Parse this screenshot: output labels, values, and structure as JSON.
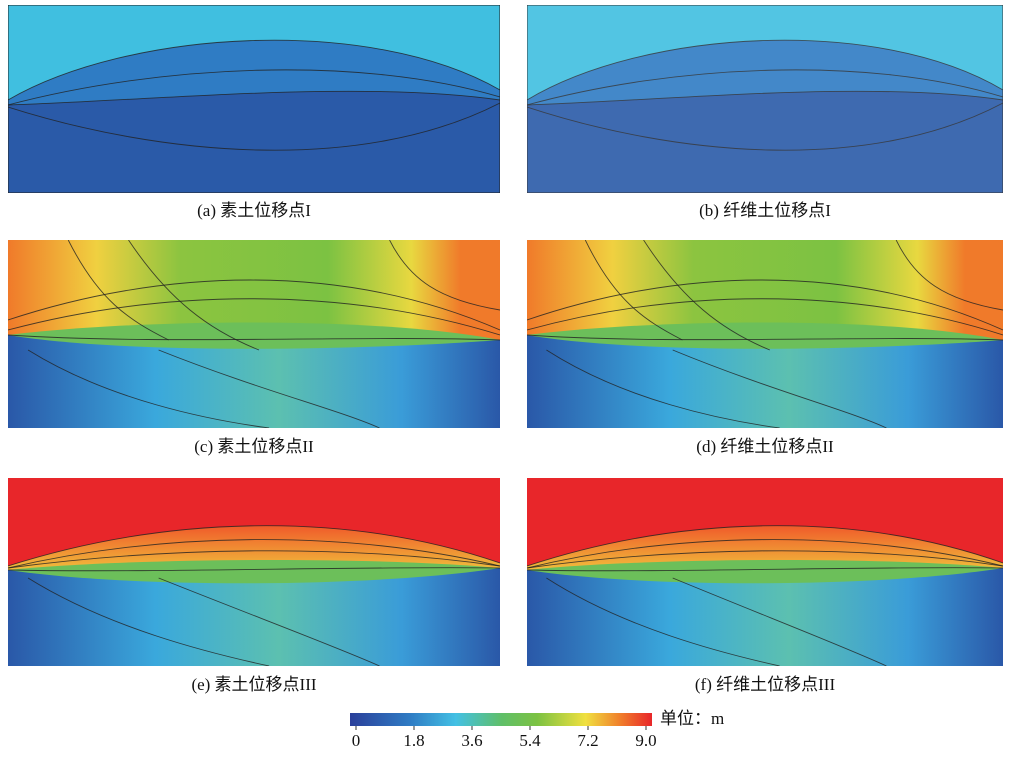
{
  "panels": [
    {
      "caption": "(a) 素土位移点I"
    },
    {
      "caption": "(b) 纤维土位移点I"
    },
    {
      "caption": "(c) 素土位移点II"
    },
    {
      "caption": "(d) 纤维土位移点II"
    },
    {
      "caption": "(e) 素土位移点III"
    },
    {
      "caption": "(f) 纤维土位移点III"
    }
  ],
  "colorbar": {
    "unit_label": "单位：m",
    "lim": [
      0,
      9
    ],
    "ticks": [
      0,
      1.8,
      3.6,
      5.4,
      7.2,
      {
        "value": 9,
        "label": "9.0"
      }
    ]
  }
}
